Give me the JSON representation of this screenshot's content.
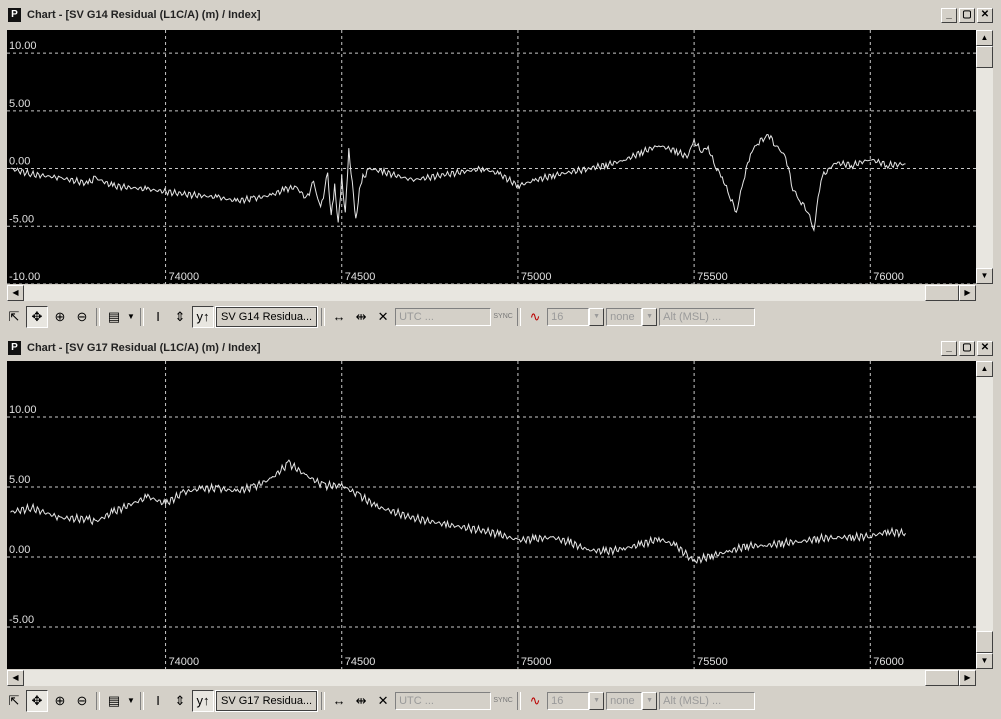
{
  "windows": [
    {
      "title": "Chart - [SV G14 Residual (L1C/A) (m) / Index]",
      "y_labels": [
        "10.00",
        "5.00",
        "0.00",
        "-5.00",
        "-10.00"
      ],
      "x_labels": [
        "74000",
        "74500",
        "75000",
        "75500",
        "76000"
      ],
      "toolbar": {
        "series_button": "SV G14 Residua...",
        "utc_field": "UTC ...",
        "sync_label": "SYNC",
        "count_value": "16",
        "mode_value": "none",
        "alt_field": "Alt (MSL) ..."
      }
    },
    {
      "title": "Chart - [SV G17 Residual (L1C/A) (m) / Index]",
      "y_labels": [
        "10.00",
        "5.00",
        "0.00",
        "-5.00"
      ],
      "x_labels": [
        "74000",
        "74500",
        "75000",
        "75500",
        "76000"
      ],
      "toolbar": {
        "series_button": "SV G17 Residua...",
        "utc_field": "UTC ...",
        "sync_label": "SYNC",
        "count_value": "16",
        "mode_value": "none",
        "alt_field": "Alt (MSL) ..."
      }
    }
  ],
  "window_controls": {
    "minimize": "_",
    "restore": "▢",
    "close": "✕"
  },
  "chart_data": [
    {
      "type": "line",
      "title": "SV G14 Residual (L1C/A) (m) / Index",
      "ylim": [
        -10,
        12
      ],
      "xlim": [
        73550,
        76300
      ],
      "yticks": [
        10,
        5,
        0,
        -5,
        -10
      ],
      "xticks": [
        74000,
        74500,
        75000,
        75500,
        76000
      ],
      "grid": true,
      "series": [
        {
          "x": [
            73560,
            73620,
            73700,
            73780,
            73800,
            73850,
            73950,
            74050,
            74150,
            74200,
            74250,
            74300,
            74340,
            74370,
            74400,
            74420,
            74440,
            74460,
            74470,
            74480,
            74490,
            74500,
            74510,
            74520,
            74530,
            74540,
            74550,
            74560,
            74580,
            74620,
            74700,
            74800,
            74900,
            74950,
            75000,
            75050,
            75100,
            75200,
            75250,
            75300,
            75350,
            75400,
            75450,
            75480,
            75500,
            75520,
            75540,
            75560,
            75580,
            75600,
            75620,
            75640,
            75660,
            75680,
            75700,
            75710,
            75730,
            75760,
            75780,
            75800,
            75820,
            75840,
            75860,
            75900,
            75950,
            76000,
            76050,
            76100
          ],
          "y": [
            0,
            -0.5,
            -0.8,
            -1.3,
            -0.8,
            -1.5,
            -1.8,
            -2.2,
            -2.5,
            -2.8,
            -2.6,
            -2.3,
            -1.8,
            -1.6,
            -2.6,
            -1.2,
            -3.5,
            -0.5,
            -4.2,
            -1.5,
            -4.8,
            -0.8,
            -3.9,
            1.5,
            -1.2,
            -4.6,
            -1.8,
            -0.8,
            0,
            -0.3,
            -1,
            -0.5,
            0,
            -0.5,
            -1.5,
            -1,
            -0.6,
            0,
            0.3,
            0.7,
            1.4,
            2,
            1.5,
            1,
            2.4,
            1.5,
            1.8,
            0.2,
            -0.8,
            -2.3,
            -3.8,
            -1,
            1.3,
            2.2,
            2.7,
            3,
            2.1,
            1,
            -1.7,
            -2.8,
            -3.5,
            -5.3,
            -0.8,
            0.5,
            0.3,
            0.8,
            0.3,
            0.4
          ]
        }
      ]
    },
    {
      "type": "line",
      "title": "SV G17 Residual (L1C/A) (m) / Index",
      "ylim": [
        -8,
        14
      ],
      "xlim": [
        73550,
        76300
      ],
      "yticks": [
        10,
        5,
        0,
        -5
      ],
      "xticks": [
        74000,
        74500,
        75000,
        75500,
        76000
      ],
      "grid": true,
      "series": [
        {
          "x": [
            73560,
            73620,
            73700,
            73780,
            73800,
            73850,
            73950,
            74000,
            74050,
            74100,
            74150,
            74200,
            74250,
            74300,
            74350,
            74400,
            74450,
            74500,
            74550,
            74600,
            74700,
            74800,
            74900,
            74950,
            75000,
            75050,
            75100,
            75150,
            75200,
            75250,
            75300,
            75350,
            75400,
            75450,
            75480,
            75500,
            75550,
            75600,
            75650,
            75700,
            75750,
            75800,
            75850,
            75900,
            75950,
            76000,
            76050,
            76100
          ],
          "y": [
            3.2,
            3.5,
            2.8,
            2.7,
            2.5,
            3.2,
            4.3,
            3.8,
            4.6,
            4.9,
            4.9,
            4.7,
            5,
            5.6,
            6.7,
            5.8,
            5.1,
            5.1,
            4.4,
            3.6,
            2.8,
            2.3,
            1.9,
            1.6,
            1.2,
            1.3,
            1.4,
            1,
            0.5,
            0.4,
            0.6,
            0.9,
            1.3,
            0.8,
            0.1,
            -0.3,
            0.1,
            0.4,
            0.8,
            0.8,
            1,
            1.1,
            1.3,
            1.4,
            1.4,
            1.5,
            1.8,
            1.7
          ]
        }
      ]
    }
  ]
}
